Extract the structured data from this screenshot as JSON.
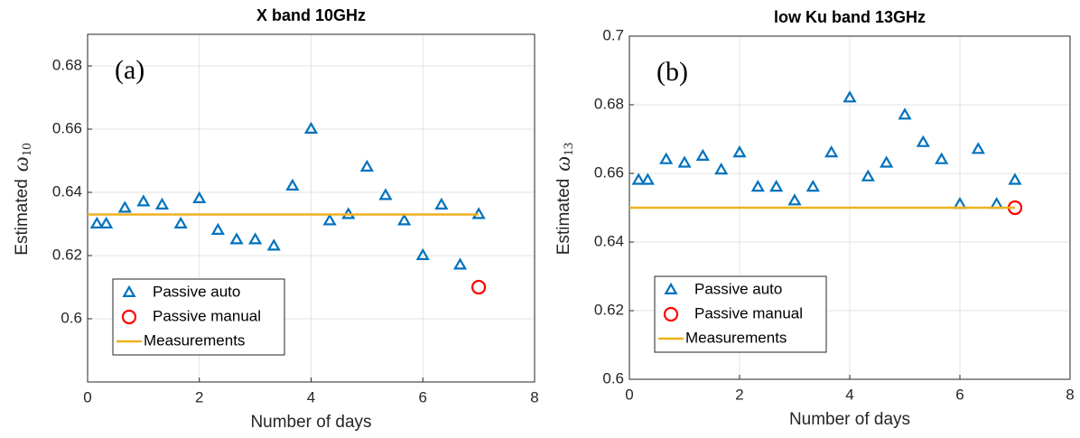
{
  "chart_data": [
    {
      "type": "scatter",
      "title": "X band 10GHz",
      "xlabel": "Number of days",
      "ylabel": "Estimated",
      "ylabel_symbol": "ω",
      "ylabel_subscript": "10",
      "annotation": "(a)",
      "xlim": [
        0,
        8
      ],
      "xticks": [
        0,
        2,
        4,
        6,
        8
      ],
      "ylim": [
        0.58,
        0.69
      ],
      "yticks": [
        0.6,
        0.62,
        0.64,
        0.66,
        0.68
      ],
      "grid": true,
      "legend": "lower left",
      "series": [
        {
          "name": "Passive auto",
          "color": "#0072bd",
          "marker": "triangle",
          "x": [
            0.167,
            0.333,
            0.667,
            1,
            1.333,
            1.667,
            2,
            2.333,
            2.667,
            3,
            3.333,
            3.667,
            4,
            4.333,
            4.667,
            5,
            5.333,
            5.667,
            6,
            6.333,
            6.667,
            7
          ],
          "values": [
            0.63,
            0.63,
            0.635,
            0.637,
            0.636,
            0.63,
            0.638,
            0.628,
            0.625,
            0.625,
            0.623,
            0.642,
            0.66,
            0.631,
            0.633,
            0.648,
            0.639,
            0.631,
            0.62,
            0.636,
            0.617,
            0.633
          ]
        },
        {
          "name": "Passive manual",
          "color": "#ff0000",
          "marker": "circle",
          "x": [
            7
          ],
          "values": [
            0.61
          ]
        },
        {
          "name": "Measurements",
          "color": "#edb120",
          "marker": "line",
          "x": [
            0,
            7
          ],
          "values": [
            0.633,
            0.633
          ]
        }
      ]
    },
    {
      "type": "scatter",
      "title": "low Ku band 13GHz",
      "xlabel": "Number of days",
      "ylabel": "Estimated",
      "ylabel_symbol": "ω",
      "ylabel_subscript": "13",
      "annotation": "(b)",
      "xlim": [
        0,
        8
      ],
      "xticks": [
        0,
        2,
        4,
        6,
        8
      ],
      "ylim": [
        0.6,
        0.7
      ],
      "yticks": [
        0.6,
        0.62,
        0.64,
        0.66,
        0.68,
        0.7
      ],
      "grid": true,
      "legend": "lower left",
      "series": [
        {
          "name": "Passive auto",
          "color": "#0072bd",
          "marker": "triangle",
          "x": [
            0.167,
            0.333,
            0.667,
            1,
            1.333,
            1.667,
            2,
            2.333,
            2.667,
            3,
            3.333,
            3.667,
            4,
            4.333,
            4.667,
            5,
            5.333,
            5.667,
            6,
            6.333,
            6.667,
            7
          ],
          "values": [
            0.658,
            0.658,
            0.664,
            0.663,
            0.665,
            0.661,
            0.666,
            0.656,
            0.656,
            0.652,
            0.656,
            0.666,
            0.682,
            0.659,
            0.663,
            0.677,
            0.669,
            0.664,
            0.651,
            0.667,
            0.651,
            0.658
          ]
        },
        {
          "name": "Passive manual",
          "color": "#ff0000",
          "marker": "circle",
          "x": [
            7
          ],
          "values": [
            0.65
          ]
        },
        {
          "name": "Measurements",
          "color": "#edb120",
          "marker": "line",
          "x": [
            0,
            7
          ],
          "values": [
            0.65,
            0.65
          ]
        }
      ]
    }
  ]
}
